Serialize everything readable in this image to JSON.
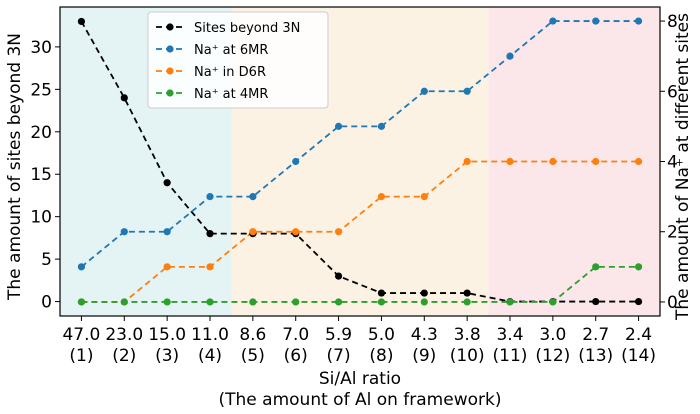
{
  "chart_data": {
    "type": "line",
    "xlabel": "Si/Al ratio",
    "xlabel2": "(The amount of Al on framework)",
    "ylabel_left": "The amount of sites beyond 3N",
    "ylabel_right": "The amount of Na⁺ at different sites",
    "ylim_left": [
      -1.7,
      34.7
    ],
    "ylim_right": [
      -0.4,
      8.4
    ],
    "yticks_left": [
      0,
      5,
      10,
      15,
      20,
      25,
      30
    ],
    "yticks_right": [
      0,
      2,
      4,
      6,
      8
    ],
    "categories": [
      {
        "si_al": "47.0",
        "al": "(1)"
      },
      {
        "si_al": "23.0",
        "al": "(2)"
      },
      {
        "si_al": "15.0",
        "al": "(3)"
      },
      {
        "si_al": "11.0",
        "al": "(4)"
      },
      {
        "si_al": "8.6",
        "al": "(5)"
      },
      {
        "si_al": "7.0",
        "al": "(6)"
      },
      {
        "si_al": "5.9",
        "al": "(7)"
      },
      {
        "si_al": "5.0",
        "al": "(8)"
      },
      {
        "si_al": "4.3",
        "al": "(9)"
      },
      {
        "si_al": "3.8",
        "al": "(10)"
      },
      {
        "si_al": "3.4",
        "al": "(11)"
      },
      {
        "si_al": "3.0",
        "al": "(12)"
      },
      {
        "si_al": "2.7",
        "al": "(13)"
      },
      {
        "si_al": "2.4",
        "al": "(14)"
      }
    ],
    "regions": [
      {
        "from": 0.5,
        "to": 4.5,
        "color": "#e4f3f4"
      },
      {
        "from": 4.5,
        "to": 10.5,
        "color": "#fbf2e3"
      },
      {
        "from": 10.5,
        "to": 14.5,
        "color": "#fbe7ea"
      }
    ],
    "series": [
      {
        "name": "Sites beyond 3N",
        "axis": "left",
        "color": "#000000",
        "values": [
          33,
          24,
          14,
          8,
          8,
          8,
          3,
          1,
          1,
          1,
          0,
          0,
          0,
          0
        ]
      },
      {
        "name": "Na⁺ at 6MR",
        "axis": "right",
        "color": "#1f77b4",
        "values": [
          1,
          2,
          2,
          3,
          3,
          4,
          5,
          5,
          6,
          6,
          7,
          8,
          8,
          8
        ]
      },
      {
        "name": "Na⁺ in D6R",
        "axis": "right",
        "color": "#ff7f0e",
        "values": [
          0,
          0,
          1,
          1,
          2,
          2,
          2,
          3,
          3,
          4,
          4,
          4,
          4,
          4
        ]
      },
      {
        "name": "Na⁺ at 4MR",
        "axis": "right",
        "color": "#2ca02c",
        "values": [
          0,
          0,
          0,
          0,
          0,
          0,
          0,
          0,
          0,
          0,
          0,
          0,
          1,
          1
        ]
      }
    ],
    "legend_position": "top-left"
  }
}
